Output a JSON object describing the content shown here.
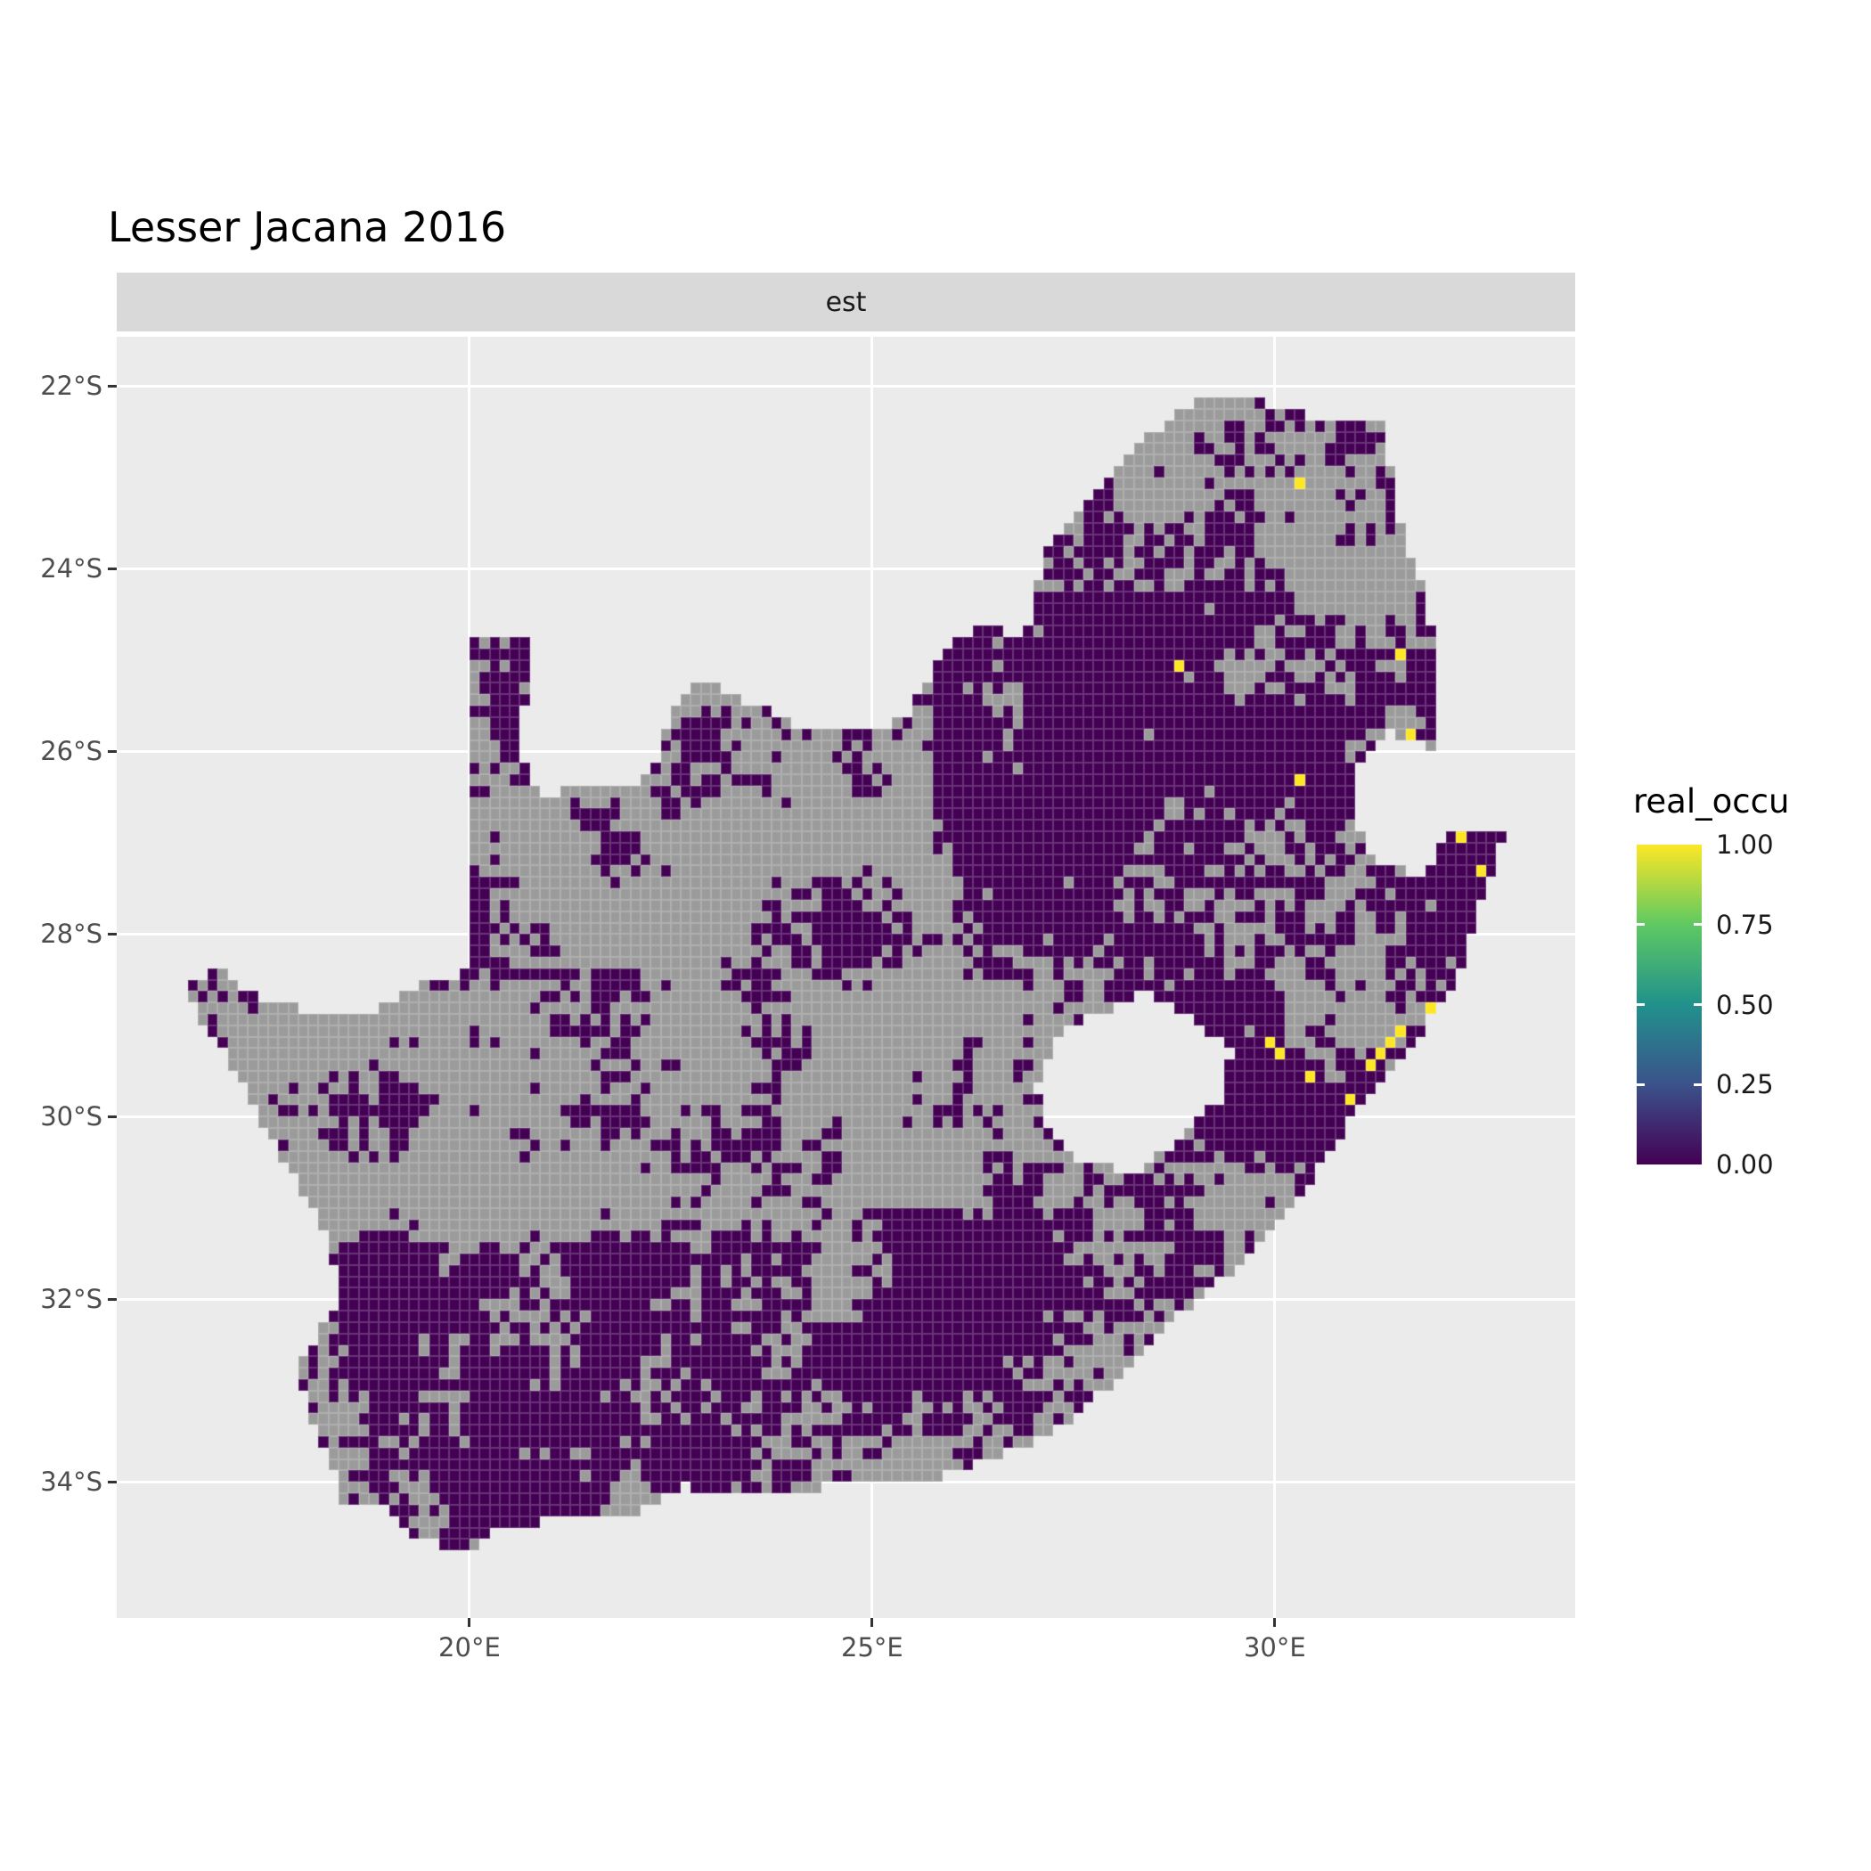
{
  "title": "Lesser Jacana 2016",
  "facet_label": "est",
  "axes": {
    "x": {
      "labels": [
        "20°E",
        "25°E",
        "30°E"
      ],
      "values": [
        20,
        25,
        30
      ]
    },
    "y": {
      "labels": [
        "22°S",
        "24°S",
        "26°S",
        "28°S",
        "30°S",
        "32°S",
        "34°S"
      ],
      "values": [
        -22,
        -24,
        -26,
        -28,
        -30,
        -32,
        -34
      ]
    }
  },
  "legend": {
    "title": "real_occu",
    "tick_labels": [
      "1.00",
      "0.75",
      "0.50",
      "0.25",
      "0.00"
    ],
    "tick_values": [
      1.0,
      0.75,
      0.5,
      0.25,
      0.0
    ]
  },
  "colors": {
    "panel_background": "#EBEBEB",
    "strip_background": "#D9D9D9",
    "gridline": "#FFFFFF",
    "axis_text": "#4D4D4D",
    "tick_mark": "#333333",
    "title_text": "#000000",
    "occu_zero_cell": "#440154",
    "occu_one_cell": "#FDE725",
    "na_cell": "#9B9B9B"
  },
  "chart_data": {
    "type": "heatmap",
    "title": "Lesser Jacana 2016",
    "facet": "est",
    "value_field": "real_occu",
    "value_range": [
      0,
      1
    ],
    "legend_position": "right",
    "grid": "major gridlines, white on grey panel",
    "viridis_stops": [
      {
        "value": 0.0,
        "color": "#440154"
      },
      {
        "value": 0.25,
        "color": "#3B528B"
      },
      {
        "value": 0.5,
        "color": "#21918C"
      },
      {
        "value": 0.75,
        "color": "#5EC962"
      },
      {
        "value": 1.0,
        "color": "#FDE725"
      }
    ],
    "cell_size_deg": 0.125,
    "axis_ranges": {
      "lon": [
        15.62,
        33.73
      ],
      "lat": [
        -35.49,
        -21.46
      ]
    },
    "south_africa_outline": [
      [
        19.98,
        -24.72
      ],
      [
        20.75,
        -24.75
      ],
      [
        20.7,
        -25.4
      ],
      [
        20.58,
        -26.0
      ],
      [
        20.9,
        -26.45
      ],
      [
        21.6,
        -26.4
      ],
      [
        22.25,
        -26.3
      ],
      [
        22.5,
        -25.6
      ],
      [
        22.9,
        -25.2
      ],
      [
        23.4,
        -25.45
      ],
      [
        24.05,
        -25.7
      ],
      [
        24.75,
        -25.8
      ],
      [
        25.4,
        -25.65
      ],
      [
        25.75,
        -25.1
      ],
      [
        25.92,
        -24.85
      ],
      [
        26.48,
        -24.6
      ],
      [
        26.88,
        -24.85
      ],
      [
        27.18,
        -23.7
      ],
      [
        27.72,
        -23.25
      ],
      [
        28.35,
        -22.6
      ],
      [
        29.15,
        -22.08
      ],
      [
        29.7,
        -22.15
      ],
      [
        30.3,
        -22.3
      ],
      [
        31.32,
        -22.42
      ],
      [
        31.5,
        -23.1
      ],
      [
        31.58,
        -23.65
      ],
      [
        31.85,
        -24.25
      ],
      [
        31.98,
        -24.85
      ],
      [
        32.02,
        -25.55
      ],
      [
        31.97,
        -25.96
      ],
      [
        31.45,
        -25.78
      ],
      [
        31.05,
        -26.1
      ],
      [
        30.96,
        -26.5
      ],
      [
        31.05,
        -26.9
      ],
      [
        31.3,
        -27.2
      ],
      [
        31.7,
        -27.33
      ],
      [
        31.98,
        -27.3
      ],
      [
        32.12,
        -26.86
      ],
      [
        32.89,
        -26.86
      ],
      [
        32.6,
        -27.55
      ],
      [
        32.27,
        -28.45
      ],
      [
        31.75,
        -29.2
      ],
      [
        31.05,
        -29.88
      ],
      [
        30.3,
        -30.9
      ],
      [
        29.55,
        -31.65
      ],
      [
        28.6,
        -32.3
      ],
      [
        27.9,
        -33.0
      ],
      [
        27.1,
        -33.55
      ],
      [
        26.4,
        -33.78
      ],
      [
        25.65,
        -34.03
      ],
      [
        25.0,
        -33.97
      ],
      [
        24.2,
        -34.1
      ],
      [
        23.4,
        -34.12
      ],
      [
        22.6,
        -34.05
      ],
      [
        21.9,
        -34.4
      ],
      [
        21.0,
        -34.42
      ],
      [
        20.3,
        -34.5
      ],
      [
        20.0,
        -34.8
      ],
      [
        19.3,
        -34.62
      ],
      [
        18.85,
        -34.18
      ],
      [
        18.45,
        -34.33
      ],
      [
        18.3,
        -33.9
      ],
      [
        18.0,
        -33.2
      ],
      [
        17.85,
        -32.75
      ],
      [
        18.35,
        -32.05
      ],
      [
        18.28,
        -31.35
      ],
      [
        17.7,
        -30.5
      ],
      [
        17.1,
        -29.5
      ],
      [
        16.45,
        -28.63
      ],
      [
        16.85,
        -28.35
      ],
      [
        17.4,
        -28.7
      ],
      [
        18.05,
        -28.87
      ],
      [
        18.85,
        -28.83
      ],
      [
        19.5,
        -28.52
      ],
      [
        19.98,
        -28.4
      ]
    ],
    "lesotho_hole": [
      [
        27.05,
        -29.65
      ],
      [
        27.3,
        -29.1
      ],
      [
        27.75,
        -28.88
      ],
      [
        28.4,
        -28.65
      ],
      [
        29.0,
        -28.92
      ],
      [
        29.45,
        -29.3
      ],
      [
        29.33,
        -29.8
      ],
      [
        28.85,
        -30.25
      ],
      [
        28.25,
        -30.62
      ],
      [
        27.55,
        -30.45
      ],
      [
        27.15,
        -30.05
      ]
    ],
    "occupied_cells": [
      [
        30.35,
        -23.1
      ],
      [
        28.79,
        -25.11
      ],
      [
        31.52,
        -24.95
      ],
      [
        31.63,
        -25.84
      ],
      [
        30.28,
        -26.28
      ],
      [
        32.2,
        -26.87
      ],
      [
        32.29,
        -26.96
      ],
      [
        32.55,
        -27.35
      ],
      [
        31.95,
        -28.78
      ],
      [
        29.95,
        -29.21
      ],
      [
        30.02,
        -29.37
      ],
      [
        30.45,
        -29.62
      ],
      [
        30.96,
        -29.8
      ],
      [
        31.2,
        -29.46
      ],
      [
        31.28,
        -29.37
      ],
      [
        31.46,
        -29.21
      ],
      [
        31.62,
        -29.12
      ]
    ],
    "zero_vs_na_density_regions": [
      {
        "lon": [
          15.6,
          33.8
        ],
        "lat": [
          -35.5,
          -21.4
        ],
        "p_dark": 0.5
      },
      {
        "lon": [
          26.6,
          31.4
        ],
        "lat": [
          -23.4,
          -21.9
        ],
        "p_dark": 0.45
      },
      {
        "lon": [
          20.9,
          26.0
        ],
        "lat": [
          -27.6,
          -24.5
        ],
        "p_dark": 0.22
      },
      {
        "lon": [
          19.9,
          22.0
        ],
        "lat": [
          -28.45,
          -26.5
        ],
        "p_dark": 0.25
      },
      {
        "lon": [
          16.4,
          26.2
        ],
        "lat": [
          -31.3,
          -27.5
        ],
        "p_dark": 0.17
      },
      {
        "lon": [
          16.6,
          20.4
        ],
        "lat": [
          -29.3,
          -28.2
        ],
        "p_dark": 0.42
      },
      {
        "lon": [
          19.0,
          24.0
        ],
        "lat": [
          -28.75,
          -28.35
        ],
        "p_dark": 0.45
      },
      {
        "lon": [
          22.3,
          26.2
        ],
        "lat": [
          -30.6,
          -28.7
        ],
        "p_dark": 0.12
      },
      {
        "lon": [
          17.3,
          20.3
        ],
        "lat": [
          -31.5,
          -29.8
        ],
        "p_dark": 0.28
      },
      {
        "lon": [
          25.7,
          30.3
        ],
        "lat": [
          -27.25,
          -24.2
        ],
        "p_dark": 0.94
      },
      {
        "lon": [
          28.8,
          33.0
        ],
        "lat": [
          -30.7,
          -24.4
        ],
        "p_dark": 0.8
      },
      {
        "lon": [
          29.9,
          31.2
        ],
        "lat": [
          -28.5,
          -27.1
        ],
        "p_dark": 0.55
      },
      {
        "lon": [
          26.0,
          28.8
        ],
        "lat": [
          -30.3,
          -27.3
        ],
        "p_dark": 0.5
      },
      {
        "lon": [
          19.9,
          24.6
        ],
        "lat": [
          -32.7,
          -29.9
        ],
        "p_dark": 0.42
      },
      {
        "lon": [
          27.3,
          30.6
        ],
        "lat": [
          -32.6,
          -30.5
        ],
        "p_dark": 0.58
      },
      {
        "lon": [
          24.8,
          27.7
        ],
        "lat": [
          -33.3,
          -31.0
        ],
        "p_dark": 0.85
      },
      {
        "lon": [
          17.5,
          24.2
        ],
        "lat": [
          -35.1,
          -31.4
        ],
        "p_dark": 0.72
      },
      {
        "lon": [
          24.2,
          28.2
        ],
        "lat": [
          -34.7,
          -32.6
        ],
        "p_dark": 0.62
      }
    ],
    "noise": {
      "hash_a": 127.1,
      "hash_b": 311.7,
      "hash_m": 43758.5453,
      "scale_coarse": 0.13,
      "scale_fine": 0.37,
      "w_coarse": 0.45,
      "w_fine": 0.25,
      "w_speckle": 0.3,
      "quantile_k": 0.0787
    }
  }
}
